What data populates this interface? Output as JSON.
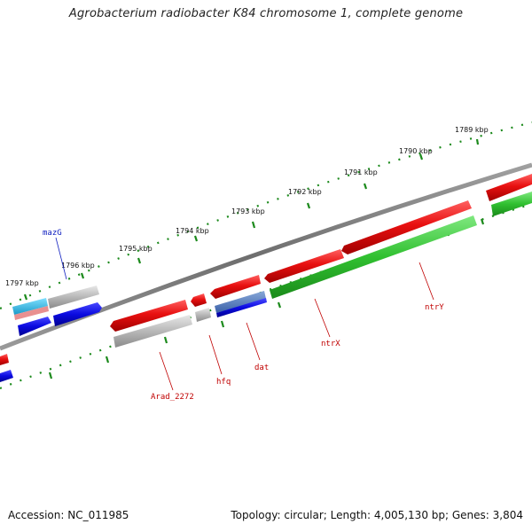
{
  "title": "Agrobacterium radiobacter K84 chromosome 1, complete genome",
  "footer": {
    "accession": "Accession: NC_011985",
    "summary": "Topology: circular; Length: 4,005,130 bp; Genes: 3,804"
  },
  "kbp_labels": [
    "1789 kbp",
    "1790 kbp",
    "1791 kbp",
    "1792 kbp",
    "1793 kbp",
    "1794 kbp",
    "1795 kbp",
    "1796 kbp",
    "1797 kbp"
  ],
  "gene_labels": [
    {
      "name": "mazG",
      "color": "blue"
    },
    {
      "name": "Arad_2272",
      "color": "red"
    },
    {
      "name": "hfq",
      "color": "red"
    },
    {
      "name": "dat",
      "color": "red"
    },
    {
      "name": "ntrX",
      "color": "red"
    },
    {
      "name": "ntrY",
      "color": "red"
    }
  ],
  "colors": {
    "backbone": "#7a7a7a",
    "tick": "#1c8a1c",
    "forward_red": "#e81010",
    "reverse_gray": "#b8b8b8",
    "blue": "#0a0ae0",
    "green": "#30c030",
    "cyan": "#20b8e0",
    "pink": "#e89090",
    "steel": "#5080c0"
  }
}
